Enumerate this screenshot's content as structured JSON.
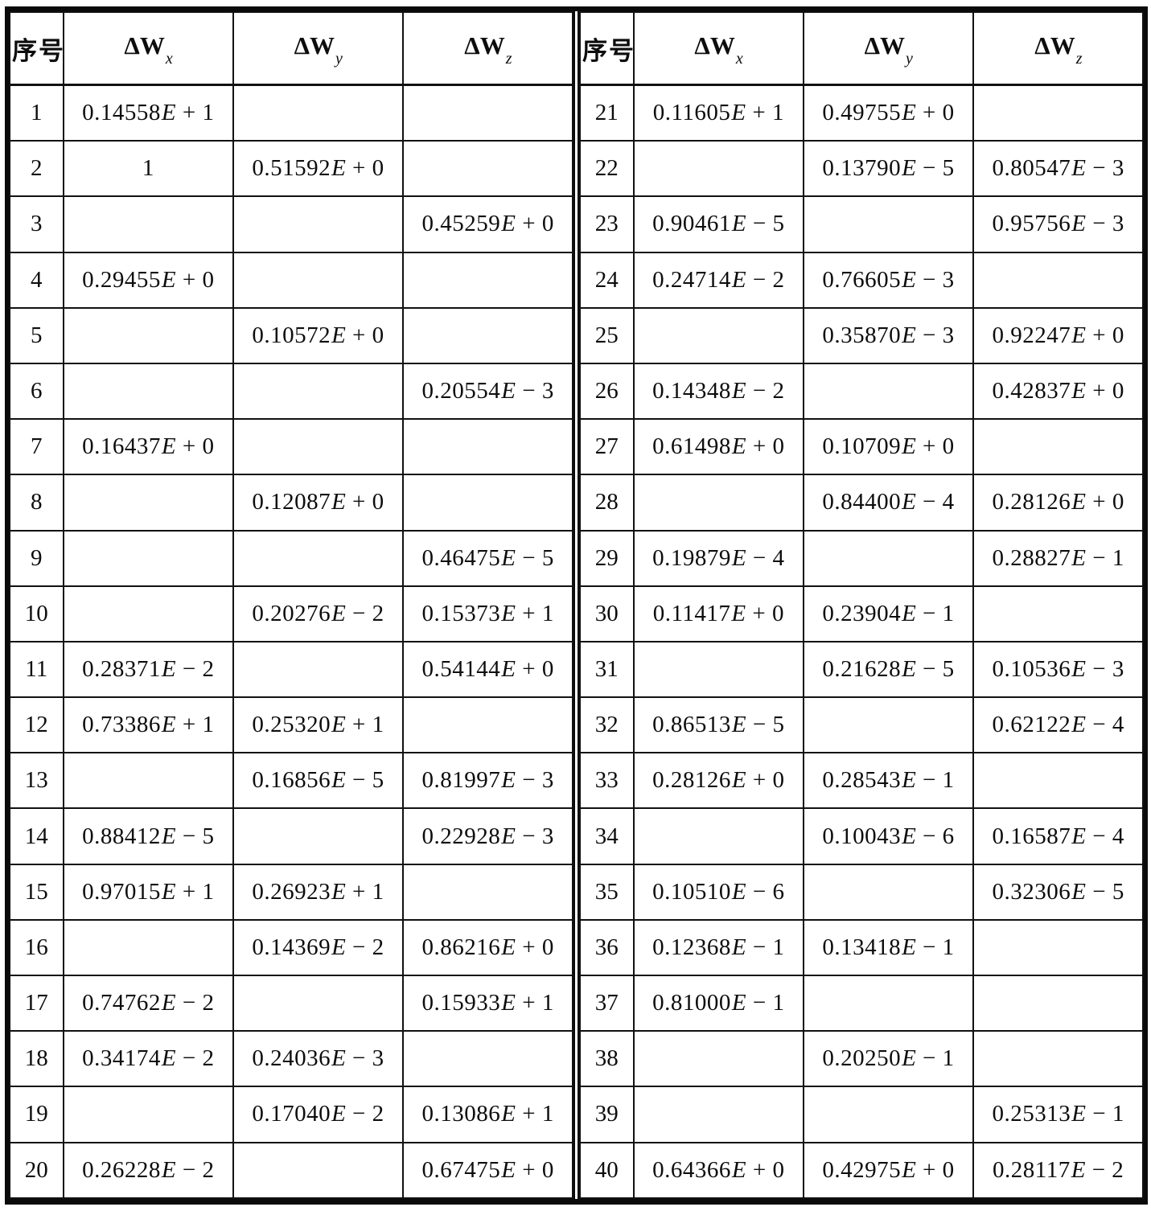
{
  "table": {
    "index_header": "序号",
    "value_header_base": "ΔW",
    "value_header_subscripts": [
      "x",
      "y",
      "z"
    ],
    "left_rows": [
      {
        "id": "1",
        "wx": "0.14558E+1",
        "wy": "",
        "wz": ""
      },
      {
        "id": "2",
        "wx": "1",
        "wy": "0.51592E+0",
        "wz": ""
      },
      {
        "id": "3",
        "wx": "",
        "wy": "",
        "wz": "0.45259E+0"
      },
      {
        "id": "4",
        "wx": "0.29455E+0",
        "wy": "",
        "wz": ""
      },
      {
        "id": "5",
        "wx": "",
        "wy": "0.10572E+0",
        "wz": ""
      },
      {
        "id": "6",
        "wx": "",
        "wy": "",
        "wz": "0.20554E-3"
      },
      {
        "id": "7",
        "wx": "0.16437E+0",
        "wy": "",
        "wz": ""
      },
      {
        "id": "8",
        "wx": "",
        "wy": "0.12087E+0",
        "wz": ""
      },
      {
        "id": "9",
        "wx": "",
        "wy": "",
        "wz": "0.46475E-5"
      },
      {
        "id": "10",
        "wx": "",
        "wy": "0.20276E-2",
        "wz": "0.15373E+1"
      },
      {
        "id": "11",
        "wx": "0.28371E-2",
        "wy": "",
        "wz": "0.54144E+0"
      },
      {
        "id": "12",
        "wx": "0.73386E+1",
        "wy": "0.25320E+1",
        "wz": ""
      },
      {
        "id": "13",
        "wx": "",
        "wy": "0.16856E-5",
        "wz": "0.81997E-3"
      },
      {
        "id": "14",
        "wx": "0.88412E-5",
        "wy": "",
        "wz": "0.22928E-3"
      },
      {
        "id": "15",
        "wx": "0.97015E+1",
        "wy": "0.26923E+1",
        "wz": ""
      },
      {
        "id": "16",
        "wx": "",
        "wy": "0.14369E-2",
        "wz": "0.86216E+0"
      },
      {
        "id": "17",
        "wx": "0.74762E-2",
        "wy": "",
        "wz": "0.15933E+1"
      },
      {
        "id": "18",
        "wx": "0.34174E-2",
        "wy": "0.24036E-3",
        "wz": ""
      },
      {
        "id": "19",
        "wx": "",
        "wy": "0.17040E-2",
        "wz": "0.13086E+1"
      },
      {
        "id": "20",
        "wx": "0.26228E-2",
        "wy": "",
        "wz": "0.67475E+0"
      }
    ],
    "right_rows": [
      {
        "id": "21",
        "wx": "0.11605E+1",
        "wy": "0.49755E+0",
        "wz": ""
      },
      {
        "id": "22",
        "wx": "",
        "wy": "0.13790E-5",
        "wz": "0.80547E-3"
      },
      {
        "id": "23",
        "wx": "0.90461E-5",
        "wy": "",
        "wz": "0.95756E-3"
      },
      {
        "id": "24",
        "wx": "0.24714E-2",
        "wy": "0.76605E-3",
        "wz": ""
      },
      {
        "id": "25",
        "wx": "",
        "wy": "0.35870E-3",
        "wz": "0.92247E+0"
      },
      {
        "id": "26",
        "wx": "0.14348E-2",
        "wy": "",
        "wz": "0.42837E+0"
      },
      {
        "id": "27",
        "wx": "0.61498E+0",
        "wy": "0.10709E+0",
        "wz": ""
      },
      {
        "id": "28",
        "wx": "",
        "wy": "0.84400E-4",
        "wz": "0.28126E+0"
      },
      {
        "id": "29",
        "wx": "0.19879E-4",
        "wy": "",
        "wz": "0.28827E-1"
      },
      {
        "id": "30",
        "wx": "0.11417E+0",
        "wy": "0.23904E-1",
        "wz": ""
      },
      {
        "id": "31",
        "wx": "",
        "wy": "0.21628E-5",
        "wz": "0.10536E-3"
      },
      {
        "id": "32",
        "wx": "0.86513E-5",
        "wy": "",
        "wz": "0.62122E-4"
      },
      {
        "id": "33",
        "wx": "0.28126E+0",
        "wy": "0.28543E-1",
        "wz": ""
      },
      {
        "id": "34",
        "wx": "",
        "wy": "0.10043E-6",
        "wz": "0.16587E-4"
      },
      {
        "id": "35",
        "wx": "0.10510E-6",
        "wy": "",
        "wz": "0.32306E-5"
      },
      {
        "id": "36",
        "wx": "0.12368E-1",
        "wy": "0.13418E-1",
        "wz": ""
      },
      {
        "id": "37",
        "wx": "0.81000E-1",
        "wy": "",
        "wz": ""
      },
      {
        "id": "38",
        "wx": "",
        "wy": "0.20250E-1",
        "wz": ""
      },
      {
        "id": "39",
        "wx": "",
        "wy": "",
        "wz": "0.25313E-1"
      },
      {
        "id": "40",
        "wx": "0.64366E+0",
        "wy": "0.42975E+0",
        "wz": "0.28117E-2"
      }
    ]
  },
  "colors": {
    "ink": "#0d0d0d",
    "paper": "#ffffff"
  }
}
